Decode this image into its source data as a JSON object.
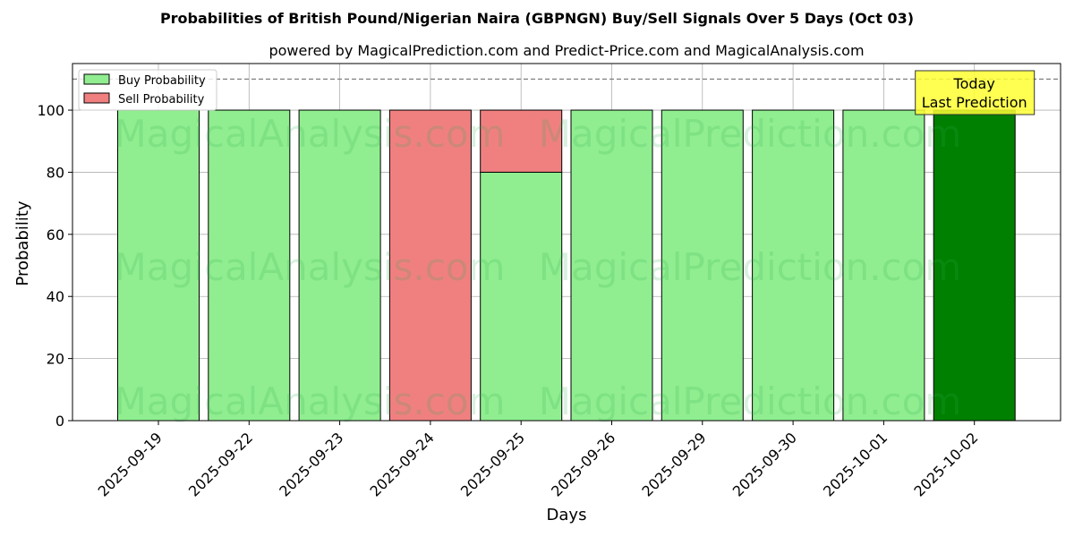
{
  "colors": {
    "buy": "#90ee90",
    "sell": "#f08080",
    "today": "#008000",
    "annotation_bg": "#ffff33",
    "reference_line": "#808080",
    "watermark": "#2eab4f"
  },
  "watermarks": [
    "MagicalAnalysis.com",
    "MagicalPrediction.com"
  ],
  "chart_data": {
    "type": "bar",
    "stacked": true,
    "title": "Probabilities of British Pound/Nigerian Naira (GBPNGN) Buy/Sell Signals Over 5 Days (Oct 03)",
    "subtitle": "powered by MagicalPrediction.com and Predict-Price.com and MagicalAnalysis.com",
    "xlabel": "Days",
    "ylabel": "Probability",
    "ylim": [
      0,
      115
    ],
    "yticks": [
      0,
      20,
      40,
      60,
      80,
      100
    ],
    "grid": true,
    "legend_position": "top-left",
    "reference_line": 110,
    "categories": [
      "2025-09-19",
      "2025-09-22",
      "2025-09-23",
      "2025-09-24",
      "2025-09-25",
      "2025-09-26",
      "2025-09-29",
      "2025-09-30",
      "2025-10-01",
      "2025-10-02"
    ],
    "series": [
      {
        "name": "Buy Probability",
        "values": [
          100,
          100,
          100,
          0,
          80,
          100,
          100,
          100,
          100,
          100
        ]
      },
      {
        "name": "Sell Probability",
        "values": [
          0,
          0,
          0,
          100,
          20,
          0,
          0,
          0,
          0,
          0
        ]
      }
    ],
    "highlight_index": 9,
    "annotation": {
      "lines": [
        "Today",
        "Last Prediction"
      ],
      "category": "2025-10-02"
    }
  }
}
